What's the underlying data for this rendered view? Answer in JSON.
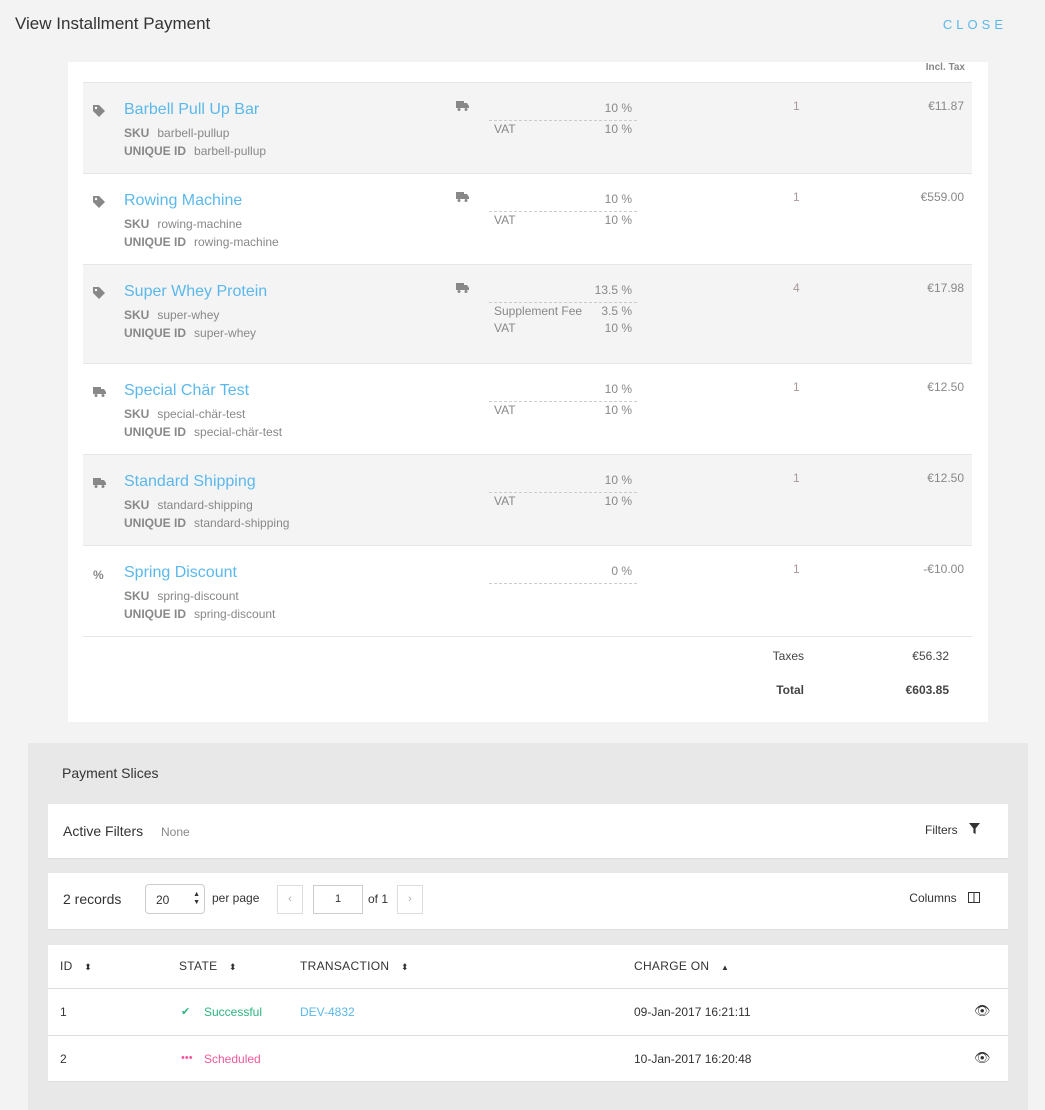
{
  "header": {
    "title": "View Installment Payment",
    "close_label": "CLOSE"
  },
  "order": {
    "price_header": "Incl. Tax",
    "sku_label": "SKU",
    "uid_label": "UNIQUE ID",
    "items": [
      {
        "icon": "tag-icon",
        "shipping": true,
        "name": "Barbell Pull Up Bar",
        "sku": "barbell-pullup",
        "uid": "barbell-pullup",
        "tax_total": "10 %",
        "taxes": [
          {
            "name": "VAT",
            "rate": "10 %"
          }
        ],
        "qty": "1",
        "price": "€11.87"
      },
      {
        "icon": "tag-icon",
        "shipping": true,
        "name": "Rowing Machine",
        "sku": "rowing-machine",
        "uid": "rowing-machine",
        "tax_total": "10 %",
        "taxes": [
          {
            "name": "VAT",
            "rate": "10 %"
          }
        ],
        "qty": "1",
        "price": "€559.00"
      },
      {
        "icon": "tag-icon",
        "shipping": true,
        "name": "Super Whey Protein",
        "sku": "super-whey",
        "uid": "super-whey",
        "tax_total": "13.5 %",
        "taxes": [
          {
            "name": "Supplement Fee",
            "rate": "3.5 %"
          },
          {
            "name": "VAT",
            "rate": "10 %"
          }
        ],
        "qty": "4",
        "price": "€17.98"
      },
      {
        "icon": "truck-icon",
        "shipping": false,
        "name": "Special Chär Test",
        "sku": "special-chär-test",
        "uid": "special-chär-test",
        "tax_total": "10 %",
        "taxes": [
          {
            "name": "VAT",
            "rate": "10 %"
          }
        ],
        "qty": "1",
        "price": "€12.50"
      },
      {
        "icon": "truck-icon",
        "shipping": false,
        "name": "Standard Shipping",
        "sku": "standard-shipping",
        "uid": "standard-shipping",
        "tax_total": "10 %",
        "taxes": [
          {
            "name": "VAT",
            "rate": "10 %"
          }
        ],
        "qty": "1",
        "price": "€12.50"
      },
      {
        "icon": "percent-icon",
        "shipping": false,
        "name": "Spring Discount",
        "sku": "spring-discount",
        "uid": "spring-discount",
        "tax_total": "0 %",
        "taxes": [],
        "qty": "1",
        "price": "-€10.00"
      }
    ],
    "taxes_label": "Taxes",
    "taxes_value": "€56.32",
    "total_label": "Total",
    "total_value": "€603.85"
  },
  "slices": {
    "title": "Payment Slices",
    "filters": {
      "label": "Active Filters",
      "value": "None",
      "button": "Filters"
    },
    "pagination": {
      "records": "2 records",
      "per_page": "20",
      "per_page_label": "per page",
      "page": "1",
      "of": "of 1",
      "columns": "Columns"
    },
    "columns": [
      "ID",
      "STATE",
      "TRANSACTION",
      "CHARGE ON"
    ],
    "rows": [
      {
        "id": "1",
        "state": "Successful",
        "state_color": "#2bb57f",
        "transaction": "DEV-4832",
        "charge_on": "09-Jan-2017 16:21:11"
      },
      {
        "id": "2",
        "state": "Scheduled",
        "state_color": "#f0589a",
        "transaction": "",
        "charge_on": "10-Jan-2017 16:20:48"
      }
    ]
  }
}
